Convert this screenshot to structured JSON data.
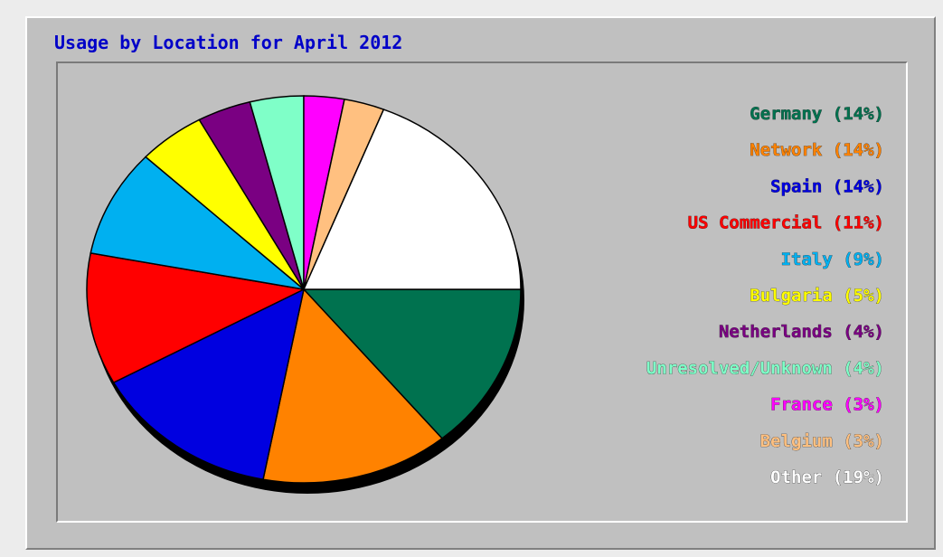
{
  "chart_data": {
    "type": "pie",
    "title": "Usage by Location for April 2012",
    "slices": [
      {
        "label": "Germany",
        "value": 14,
        "color": "#00724f"
      },
      {
        "label": "Network",
        "value": 14,
        "color": "#ff8200"
      },
      {
        "label": "Spain",
        "value": 14,
        "color": "#0000e0"
      },
      {
        "label": "US Commercial",
        "value": 11,
        "color": "#ff0000"
      },
      {
        "label": "Italy",
        "value": 9,
        "color": "#00b0f0"
      },
      {
        "label": "Bulgaria",
        "value": 5,
        "color": "#ffff00"
      },
      {
        "label": "Netherlands",
        "value": 4,
        "color": "#7a0082"
      },
      {
        "label": "Unresolved/Unknown",
        "value": 4,
        "color": "#7fffc8"
      },
      {
        "label": "France",
        "value": 3,
        "color": "#ff00ff"
      },
      {
        "label": "Belgium",
        "value": 3,
        "color": "#ffc080"
      },
      {
        "label": "Other",
        "value": 19,
        "color": "#ffffff"
      }
    ],
    "legend_position": "right",
    "legend_entries": [
      "Germany (14%)",
      "Network (14%)",
      "Spain (14%)",
      "US Commercial (11%)",
      "Italy (9%)",
      "Bulgaria (5%)",
      "Netherlands (4%)",
      "Unresolved/Unknown (4%)",
      "France (3%)",
      "Belgium (3%)",
      "Other (19%)"
    ],
    "background_color": "#c0c0c0",
    "title_color": "#0000c8"
  }
}
